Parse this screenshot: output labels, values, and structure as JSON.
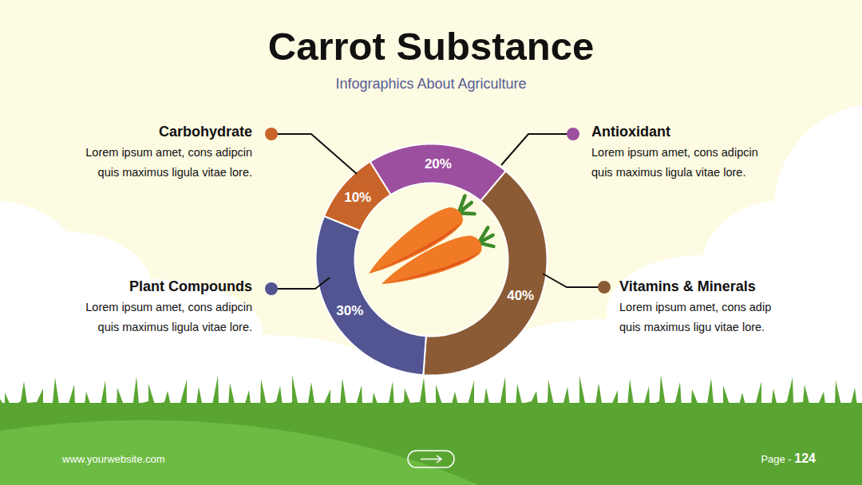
{
  "chart_data": {
    "type": "pie",
    "title": "Carrot Substance",
    "subtitle": "Infographics About Agriculture",
    "categories": [
      "Carbohydrate",
      "Antioxidant",
      "Vitamins & Minerals",
      "Plant Compounds"
    ],
    "values": [
      10,
      20,
      40,
      30
    ],
    "value_labels": [
      "10%",
      "20%",
      "40%",
      "30%"
    ],
    "colors": [
      "#c8642a",
      "#9c4f9f",
      "#8b5b36",
      "#525592"
    ],
    "data_labels": true,
    "descriptions": [
      [
        "Lorem ipsum amet, cons adipcin",
        "quis maximus ligula vitae lore."
      ],
      [
        "Lorem ipsum amet, cons adipcin",
        "quis maximus ligula vitae lore."
      ],
      [
        "Lorem ipsum amet, cons adip",
        "quis maximus ligu vitae lore."
      ],
      [
        "Lorem ipsum amet, cons adipcin",
        "quis maximus ligula vitae lore."
      ]
    ]
  },
  "footer": {
    "website": "www.yourwebsite.com",
    "page_label": "Page -",
    "page": "124"
  }
}
